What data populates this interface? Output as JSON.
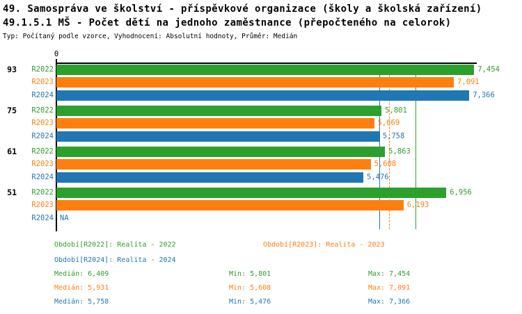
{
  "header": {
    "title_line1": "49. Samospráva ve školství - příspěvkové organizace (školy a školská zařízení)",
    "title_line2": "49.1.5.1 MŠ - Počet dětí na jednoho zaměstnance (přepočteného na celorok)",
    "subtitle": "Typ: Počítaný podle vzorce, Vyhodnocení: Absolutní hodnoty, Průměr: Medián"
  },
  "colors": {
    "r2022": "#2ca02c",
    "r2023": "#ff7f0e",
    "r2024": "#1f77b4",
    "axis": "#000000"
  },
  "chart_data": {
    "type": "bar",
    "orientation": "horizontal",
    "axis_origin_label": "0",
    "xlim": [
      0,
      7.5
    ],
    "decimal_separator": ",",
    "series": [
      "R2022",
      "R2023",
      "R2024"
    ],
    "groups": [
      {
        "label": "93",
        "values": [
          7.454,
          7.091,
          7.366
        ],
        "displays": [
          "7,454",
          "7,091",
          "7,366"
        ]
      },
      {
        "label": "75",
        "values": [
          5.801,
          5.669,
          5.758
        ],
        "displays": [
          "5,801",
          "5,669",
          "5,758"
        ]
      },
      {
        "label": "61",
        "values": [
          5.863,
          5.608,
          5.476
        ],
        "displays": [
          "5,863",
          "5,608",
          "5,476"
        ]
      },
      {
        "label": "51",
        "values": [
          6.956,
          6.193,
          null
        ],
        "displays": [
          "6,956",
          "6,193",
          "NA"
        ]
      }
    ],
    "median_lines": [
      {
        "series": "R2022",
        "value": 6.409,
        "style": "solid"
      },
      {
        "series": "R2023",
        "value": 5.931,
        "style": "dashed"
      },
      {
        "series": "R2024",
        "value": 5.758,
        "style": "solid"
      }
    ]
  },
  "legend": {
    "items": [
      {
        "series": "R2022",
        "label": "Období[R2022]: Realita - 2022"
      },
      {
        "series": "R2023",
        "label": "Období[R2023]: Realita - 2023"
      },
      {
        "series": "R2024",
        "label": "Období[R2024]: Realita - 2024"
      }
    ]
  },
  "stats": {
    "rows": [
      {
        "series": "R2022",
        "median": "Medián: 6,409",
        "min": "Min: 5,801",
        "max": "Max: 7,454"
      },
      {
        "series": "R2023",
        "median": "Medián: 5,931",
        "min": "Min: 5,608",
        "max": "Max: 7,091"
      },
      {
        "series": "R2024",
        "median": "Medián: 5,758",
        "min": "Min: 5,476",
        "max": "Max: 7,366"
      }
    ]
  }
}
